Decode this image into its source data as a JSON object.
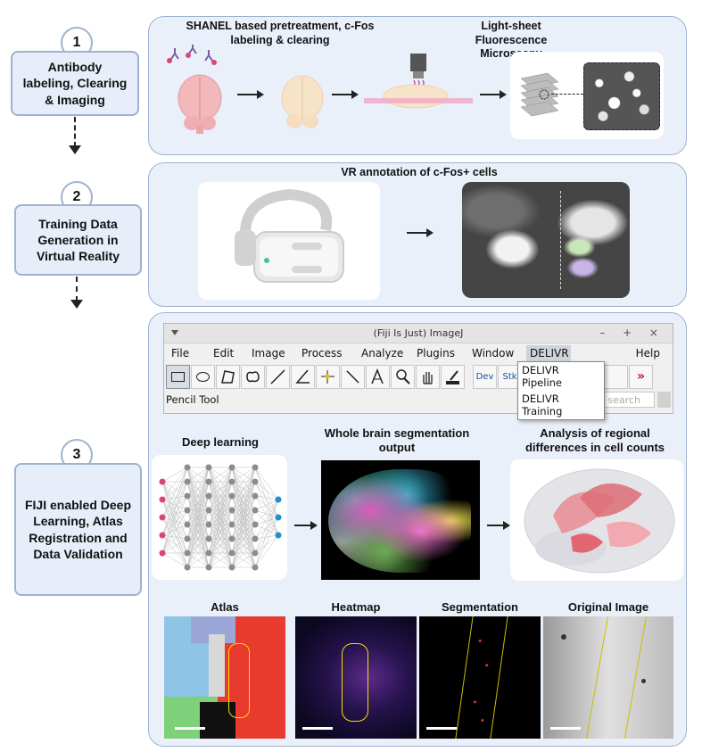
{
  "steps": [
    {
      "number": "1",
      "label": "Antibody labeling, Clearing & Imaging"
    },
    {
      "number": "2",
      "label": "Training Data Generation in Virtual Reality"
    },
    {
      "number": "3",
      "label": "FIJI enabled Deep Learning, Atlas Registration and  Data Validation"
    }
  ],
  "panel1": {
    "heading_left": "SHANEL based pretreatment, c-Fos labeling & clearing",
    "heading_right": "Light-sheet Fluorescence Microscopy"
  },
  "panel2": {
    "heading": "VR annotation of c-Fos+ cells"
  },
  "imagej": {
    "title": "(Fiji Is Just) ImageJ",
    "window_controls": "– + ×",
    "menu": [
      "File",
      "Edit",
      "Image",
      "Process",
      "Analyze",
      "Plugins",
      "Window",
      "DELIVR",
      "Help"
    ],
    "dev_label": "Dev",
    "stk_label": "Stk",
    "status_text": "Pencil Tool",
    "search_placeholder": "Click here to search",
    "delivr_menu": [
      "DELIVR Pipeline",
      "DELIVR Training"
    ]
  },
  "panel3": {
    "deep_learning": "Deep learning",
    "segmentation_output": "Whole brain segmentation output",
    "regional_analysis": "Analysis of regional differences in cell counts",
    "bottom_labels": [
      "Atlas",
      "Heatmap",
      "Segmentation",
      "Original Image"
    ]
  },
  "colors": {
    "panel_bg": "#eaf0fa",
    "panel_border": "#9fb2cf",
    "node_pink": "#d9457a",
    "node_gray": "#8c8c8c",
    "node_blue": "#1f8fc9"
  }
}
